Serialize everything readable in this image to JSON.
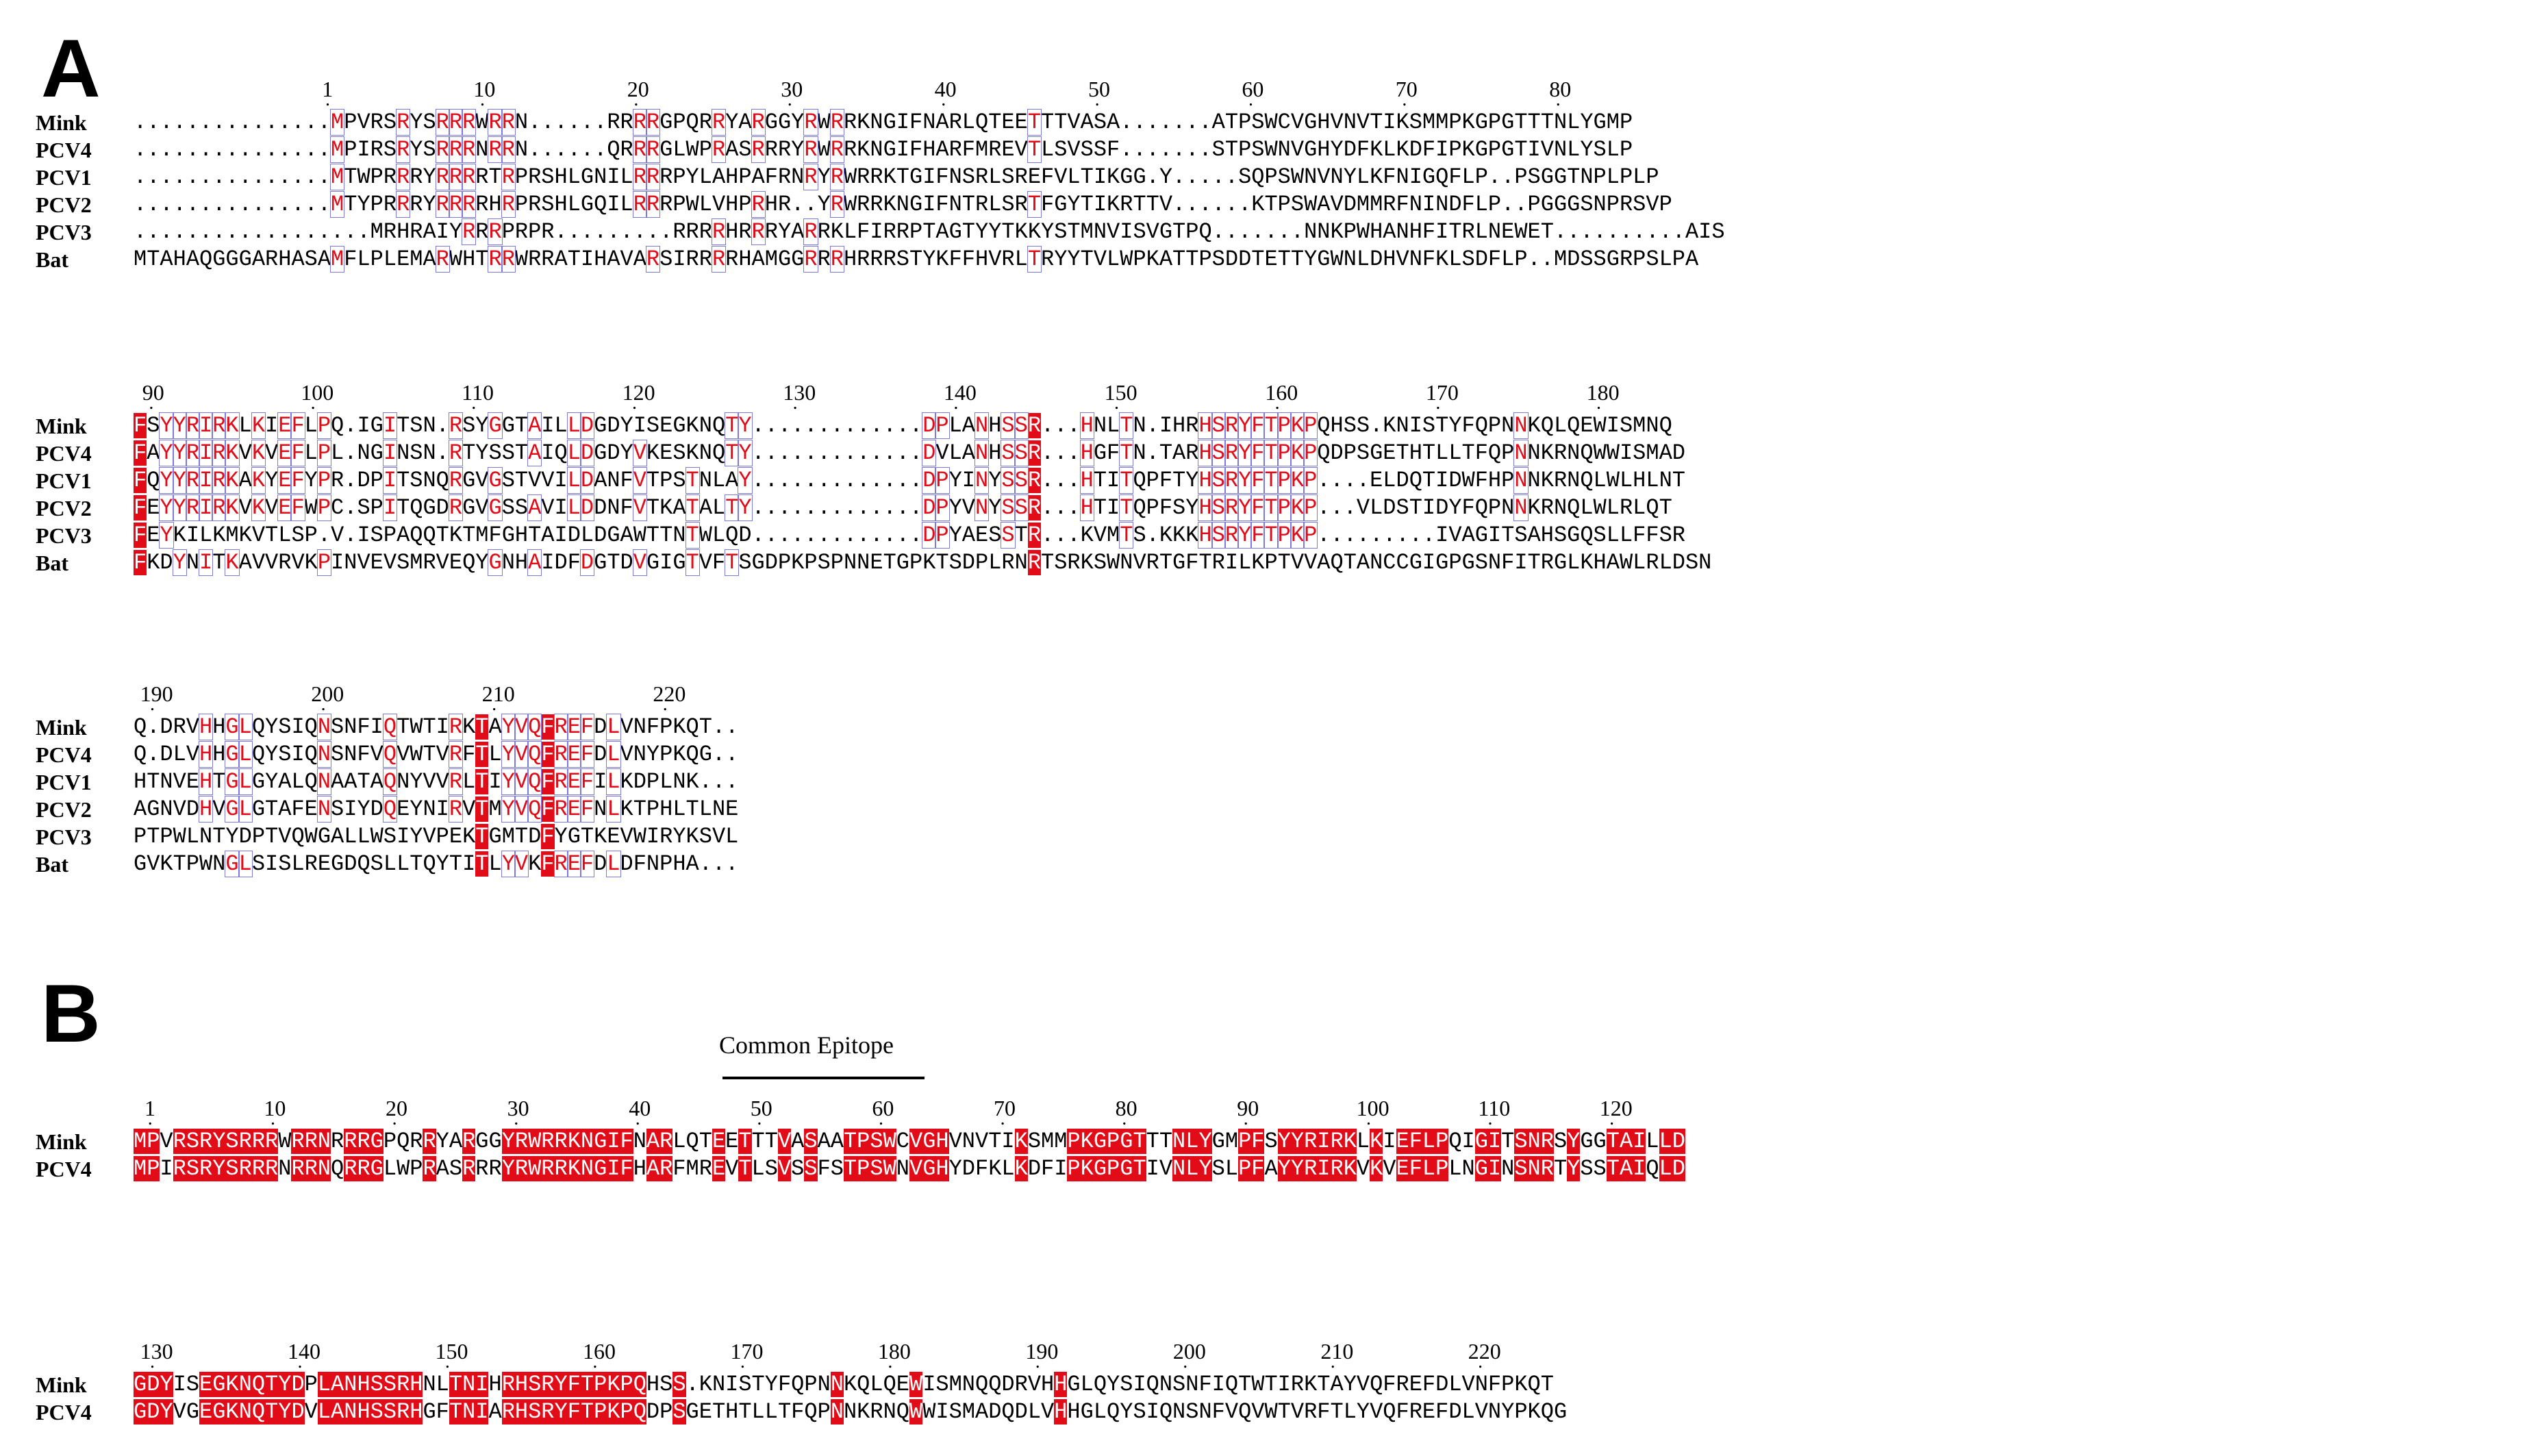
{
  "panels": {
    "A": {
      "label": "A"
    },
    "B": {
      "label": "B"
    }
  },
  "common_epitope": "Common Epitope",
  "panel_a": {
    "blocks": [
      {
        "ticks": [
          "1",
          "10",
          "20",
          "30",
          "40",
          "50",
          "60",
          "70",
          "80"
        ],
        "rows": [
          {
            "name": "Mink",
            "seq": "...............MPVRSRYSRRRWRRN......RRRRGPQRRYARGGYRWRRKNGIFNARLQTEETTTVASA.......ATPSWCVGHVNVTIKSMMPKGPGTTTNLYGMP"
          },
          {
            "name": "PCV4",
            "seq": "...............MPIRSRYSRRRNRRN......QRRRGLWPRASRRRYRWRRKNGIFHARFMREVTLSVSSF.......STPSWNVGHYDFKLKDFIPKGPGTIVNLYSLP"
          },
          {
            "name": "PCV1",
            "seq": "...............MTWPRRRYRRRRTRPRSHLGNILRRRPYLAHPAFRNRYRWRRKTGIFNSRLSREFVLTIKGG.Y.....SQPSWNVNYLKFNIGQFLP..PSGGTNPLPLP"
          },
          {
            "name": "PCV2",
            "seq": "...............MTYPRRRYRRRRHRPRSHLGQILRRRPWLVHPRHR..YRWRRKNGIFNTRLSRTFGYTIKRTTV......KTPSWAVDMMRFNINDFLP..PGGGSNPRSVP"
          },
          {
            "name": "PCV3",
            "seq": "..................MRHRAIYRRRPRPR.........RRRRHRRRYARRKLFIRRPTAGTYYTKKYSTMNVISVGTPQ.......NNKPWHANHFITRLNEWET..........AIS"
          },
          {
            "name": "Bat",
            "seq": "MTAHAQGGGARHASAMFLPLEMARWHTRRWRRATIHAVARSIRRRRHAMGGRRRHRRRSTYKFFHVRLTRYYTVLWPKATTPSDDTETTYGWNLDHVNFKLSDFLP..MDSSGRPSLPA"
          }
        ]
      },
      {
        "ticks": [
          "90",
          "100",
          "110",
          "120",
          "130",
          "140",
          "150",
          "160",
          "170",
          "180"
        ],
        "rows": [
          {
            "name": "Mink",
            "seq": "FSYYRIRKLKIEFLPQ.IGITSN.RSYGGTAILLDGDYISEGKNQTY.............DPLANHSSR...HNLTN.IHRHSRYFTPKPQHSS.KNISTYFQPNNKQLQEWISMNQ"
          },
          {
            "name": "PCV4",
            "seq": "FAYYRIRKVKVEFLPL.NGINSN.RTYSSTAIQLDGDYVKESKNQTY.............DVLANHSSR...HGFTN.TARHSRYFTPKPQDPSGETHTLLTFQPNNKRNQWWISMAD"
          },
          {
            "name": "PCV1",
            "seq": "FQYYRIRKAKYEFYPR.DPITSNQRGVGSTVVILDANFVTPSTNLAY.............DPYINYSSR...HTITQPFTYHSRYFTPKP....ELDQTIDWFHPNNKRNQLWLHLNT"
          },
          {
            "name": "PCV2",
            "seq": "FEYYRIRKVKVEFWPC.SPITQGDRGVGSSAVILDDNFVTKATALTY.............DPYVNYSSR...HTITQPFSYHSRYFTPKP...VLDSTIDYFQPNNKRNQLWLRLQT"
          },
          {
            "name": "PCV3",
            "seq": "FEYKILKMKVTLSP.V.ISPAQQTKTMFGHTAIDLDGAWTTNTWLQD.............DPYAESSTR...KVMTS.KKKHSRYFTPKP.........IVAGITSAHSGQSLLFFSR"
          },
          {
            "name": "Bat",
            "seq": "FKDYNITKAVVRVKPINVEVSMRVEQYGNHAIDFDGTDVGIGTVFTSGDPKPSPNNETGPKTSDPLRNRTSRKSWNVRTGFTRILKPTVVAQTANCCGIGPGSNFITRGLKHAWLRLDSN"
          }
        ]
      },
      {
        "ticks": [
          "190",
          "200",
          "210",
          "220"
        ],
        "rows": [
          {
            "name": "Mink",
            "seq": "Q.DRVHHGLQYSIQNSNFIQTWTIRKTAYVQFREFDLVNFPKQT.."
          },
          {
            "name": "PCV4",
            "seq": "Q.DLVHHGLQYSIQNSNFVQVWTVRFTLYVQFREFDLVNYPKQG.."
          },
          {
            "name": "PCV1",
            "seq": "HTNVEHTGLGYALQNAATAQNYVVRLTIYVQFREFILKDPLNK..."
          },
          {
            "name": "PCV2",
            "seq": "AGNVDHVGLGTAFENSIYDQEYNIRVTMYVQFREFNLKTPHLTLNE"
          },
          {
            "name": "PCV3",
            "seq": "PTPWLNTYDPTVQWGALLWSIYVPEKTGMTDFYGTKEVWIRYKSVL"
          },
          {
            "name": "Bat",
            "seq": "GVKTPWNGLSISLREGDQSLLTQYTITLYVKFREFDLDFNPHA..."
          }
        ]
      }
    ]
  },
  "panel_b": {
    "blocks": [
      {
        "ticks": [
          "1",
          "10",
          "20",
          "30",
          "40",
          "50",
          "60",
          "70",
          "80",
          "90",
          "100",
          "110",
          "120"
        ],
        "rows": [
          {
            "name": "Mink",
            "seq": "MPVRSRYSRRRWRRNRRRGPQRRYARGGYRWRRKNGIFNARLQTEETTTVASAATPSWCVGHVNVTIKSMMPKGPGTTTNLYGMPFSYYRIRKLKIEFLPQIGITSNRSYGGTAILLD"
          },
          {
            "name": "PCV4",
            "seq": "MPIRSRYSRRRNRRNQRRGLWPRASRRRYRWRRKNGIFHARFMREVTLSVSSFSTPSWNVGHYDFKLKDFIPKGPGTIVNLYSLPFAYYRIRKVKVEFLPLNGINSNRTYSSTAIQLD"
          }
        ]
      },
      {
        "ticks": [
          "130",
          "140",
          "150",
          "160",
          "170",
          "180",
          "190",
          "200",
          "210",
          "220"
        ],
        "rows": [
          {
            "name": "Mink",
            "seq": "GDYISEGKNQTYDPLANHSSRHNLTNIHRHSRYFTPKPQHSS.KNISTYFQPNNKQLQEWISMNQQDRVHHGLQYSIQNSNFIQTWTIRKTAYVQFREFDLVNFPKQT"
          },
          {
            "name": "PCV4",
            "seq": "GDYVGEGKNQTYDVLANHSSRHGFTNIARHSRYFTPKPQDPSGETHTLLTFQPNNKRNQWWISMADQDLVHHGLQYSIQNSNFVQVWTVRFTLYVQFREFDLVNYPKQG"
          }
        ]
      }
    ]
  }
}
